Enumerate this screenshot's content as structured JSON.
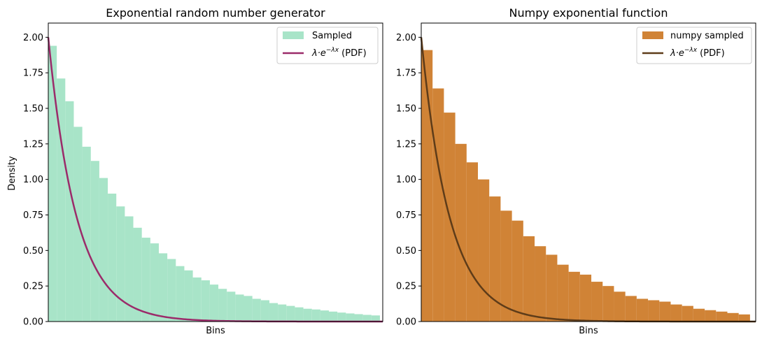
{
  "chart_data": [
    {
      "type": "bar",
      "title": "Exponential random number generator",
      "xlabel": "Bins",
      "ylabel": "Density",
      "xlim": [
        0,
        5.9
      ],
      "ylim": [
        0,
        2.1
      ],
      "yticks": [
        "0.00",
        "0.25",
        "0.50",
        "0.75",
        "1.00",
        "1.25",
        "1.50",
        "1.75",
        "2.00"
      ],
      "bin_width": 0.15,
      "series": [
        {
          "name": "Sampled",
          "kind": "histogram",
          "color": "#a8e4c8",
          "values": [
            1.94,
            1.71,
            1.55,
            1.37,
            1.23,
            1.13,
            1.01,
            0.9,
            0.81,
            0.74,
            0.66,
            0.59,
            0.55,
            0.48,
            0.44,
            0.39,
            0.36,
            0.31,
            0.29,
            0.26,
            0.23,
            0.21,
            0.19,
            0.18,
            0.16,
            0.15,
            0.13,
            0.12,
            0.11,
            0.1,
            0.09,
            0.085,
            0.078,
            0.07,
            0.063,
            0.057,
            0.052,
            0.047,
            0.043
          ]
        },
        {
          "name": "λ·e^(−λx) (PDF)",
          "kind": "line",
          "color": "#9b2b6a",
          "lambda": 2
        }
      ],
      "legend": {
        "position": "top-right",
        "items": [
          {
            "label": "Sampled",
            "color": "#a8e4c8",
            "kind": "patch"
          },
          {
            "label_math": "λ·e",
            "label_sup": "−λx",
            "label_tail": " (PDF)",
            "color": "#9b2b6a",
            "kind": "line"
          }
        ]
      }
    },
    {
      "type": "bar",
      "title": "Numpy exponential function",
      "xlabel": "Bins",
      "ylabel": "",
      "xlim": [
        0,
        5.9
      ],
      "ylim": [
        0,
        2.1
      ],
      "yticks": [
        "0.00",
        "0.25",
        "0.50",
        "0.75",
        "1.00",
        "1.25",
        "1.50",
        "1.75",
        "2.00"
      ],
      "bin_width": 0.2,
      "series": [
        {
          "name": "numpy sampled",
          "kind": "histogram",
          "color": "#d08336",
          "values": [
            1.91,
            1.64,
            1.47,
            1.25,
            1.12,
            1.0,
            0.88,
            0.78,
            0.71,
            0.6,
            0.53,
            0.47,
            0.4,
            0.35,
            0.33,
            0.28,
            0.25,
            0.21,
            0.18,
            0.16,
            0.15,
            0.14,
            0.12,
            0.11,
            0.09,
            0.08,
            0.07,
            0.06,
            0.05
          ]
        },
        {
          "name": "λ·e^(−λx) (PDF)",
          "kind": "line",
          "color": "#5e3c19",
          "lambda": 2
        }
      ],
      "legend": {
        "position": "top-right",
        "items": [
          {
            "label": "numpy sampled",
            "color": "#d08336",
            "kind": "patch"
          },
          {
            "label_math": "λ·e",
            "label_sup": "−λx",
            "label_tail": " (PDF)",
            "color": "#5e3c19",
            "kind": "line"
          }
        ]
      }
    }
  ]
}
